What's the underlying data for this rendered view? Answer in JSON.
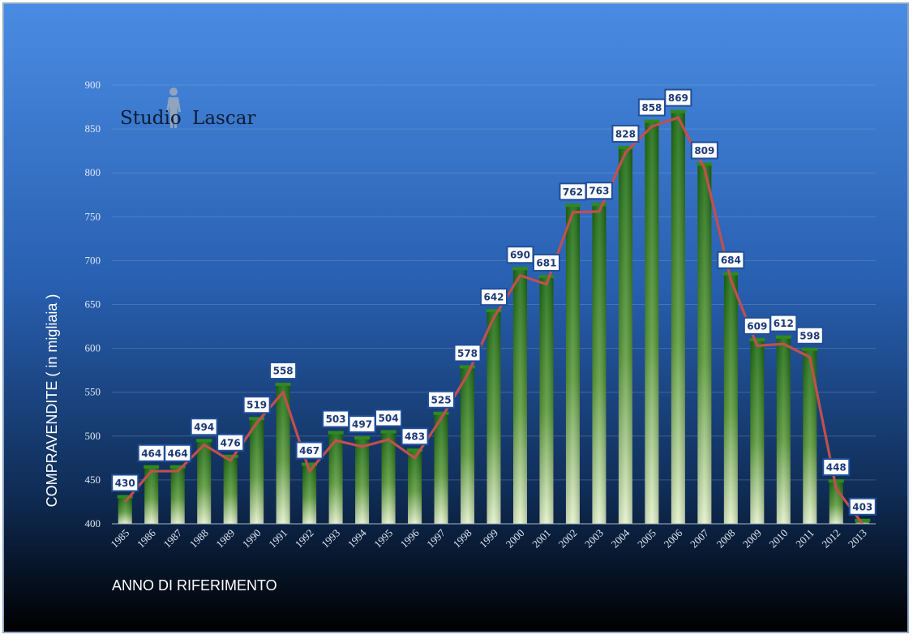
{
  "brand": {
    "part1": "Studio",
    "part2": "Lascar",
    "logo_icon": "human-figure-icon"
  },
  "chart_data": {
    "type": "bar",
    "categories": [
      "1985",
      "1986",
      "1987",
      "1988",
      "1989",
      "1990",
      "1991",
      "1992",
      "1993",
      "1994",
      "1995",
      "1996",
      "1997",
      "1998",
      "1999",
      "2000",
      "2001",
      "2002",
      "2003",
      "2004",
      "2005",
      "2006",
      "2007",
      "2008",
      "2009",
      "2010",
      "2011",
      "2012",
      "2013"
    ],
    "values": [
      430,
      464,
      464,
      494,
      476,
      519,
      558,
      467,
      503,
      497,
      504,
      483,
      525,
      578,
      642,
      690,
      681,
      762,
      763,
      828,
      858,
      869,
      809,
      684,
      609,
      612,
      598,
      448,
      403
    ],
    "data_labels": [
      "430",
      "464",
      "464",
      "494",
      "476",
      "519",
      "558",
      "467",
      "503",
      "497",
      "504",
      "483",
      "525",
      "578",
      "642",
      "690",
      "681",
      "762",
      "763",
      "828",
      "858",
      "869",
      "809",
      "684",
      "609",
      "612",
      "598",
      "448",
      "403"
    ],
    "overlay_line": {
      "type": "line",
      "values": [
        425,
        460,
        460,
        490,
        472,
        515,
        550,
        460,
        495,
        488,
        496,
        475,
        520,
        570,
        635,
        683,
        673,
        755,
        756,
        823,
        853,
        863,
        805,
        678,
        603,
        605,
        590,
        440,
        400
      ]
    },
    "xlabel": "ANNO DI RIFERIMENTO",
    "ylabel": "COMPRAVENDITE  ( in migliaia )",
    "ylim": [
      400,
      900
    ],
    "yticks": [
      "400",
      "450",
      "500",
      "550",
      "600",
      "650",
      "700",
      "750",
      "800",
      "850",
      "900"
    ],
    "grid": true,
    "legend": "none",
    "colors": {
      "bar_top": "#1b6b12",
      "bar_bottom": "#e4f2cc",
      "line": "#c0504d",
      "bg_top": "#4a8ce3",
      "bg_bottom": "#000000"
    }
  }
}
